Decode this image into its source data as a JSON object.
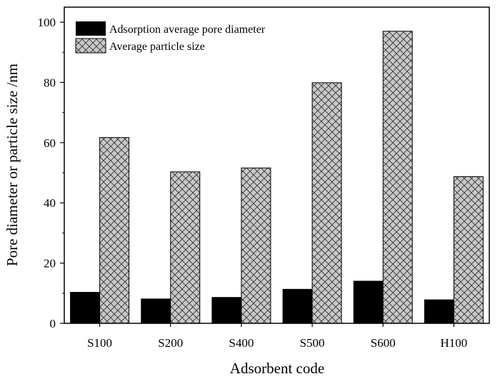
{
  "chart_data": {
    "type": "bar",
    "title": "",
    "xlabel": "Adsorbent code",
    "ylabel": "Pore diameter or particle size /nm",
    "categories": [
      "S100",
      "S200",
      "S400",
      "S500",
      "S600",
      "H100"
    ],
    "ylim": [
      0,
      105
    ],
    "yticks": [
      0,
      20,
      40,
      60,
      80,
      100
    ],
    "legend_position": "top-left",
    "series": [
      {
        "name": "Adsorption average pore diameter",
        "values": [
          10.3,
          8.1,
          8.6,
          11.3,
          14.0,
          7.8
        ],
        "color": "#000000",
        "pattern": "solid"
      },
      {
        "name": "Average particle size",
        "values": [
          61.7,
          50.3,
          51.6,
          79.9,
          97.0,
          48.7
        ],
        "color": "#c8c8c8",
        "pattern": "crosshatch"
      }
    ]
  }
}
